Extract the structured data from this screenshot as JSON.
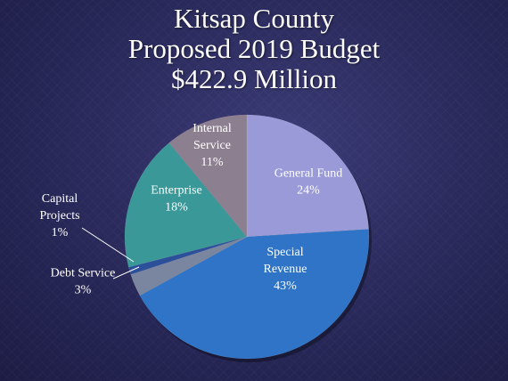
{
  "title": {
    "line1": "Kitsap County",
    "line2": "Proposed 2019 Budget",
    "line3": "$422.9 Million"
  },
  "chart_data": {
    "type": "pie",
    "title": "Kitsap County Proposed 2019 Budget $422.9 Million",
    "slices": [
      {
        "name": "General Fund",
        "label_lines": [
          "General Fund",
          "24%"
        ],
        "value": 24,
        "color": "#9a9ad8",
        "label_color": "#ffffff"
      },
      {
        "name": "Special Revenue",
        "label_lines": [
          "Special",
          "Revenue",
          "43%"
        ],
        "value": 43,
        "color": "#2f74c6",
        "label_color": "#ffffff"
      },
      {
        "name": "Debt Service",
        "label_lines": [
          "Debt Service",
          "3%"
        ],
        "value": 3,
        "color": "#7a86a0",
        "label_color": "#ffffff"
      },
      {
        "name": "Capital Projects",
        "label_lines": [
          "Capital",
          "Projects",
          "1%"
        ],
        "value": 1,
        "color": "#2c4f9a",
        "label_color": "#ffffff"
      },
      {
        "name": "Enterprise",
        "label_lines": [
          "Enterprise",
          "18%"
        ],
        "value": 18,
        "color": "#3b9898",
        "label_color": "#ffffff"
      },
      {
        "name": "Internal Service",
        "label_lines": [
          "Internal",
          "Service",
          "11%"
        ],
        "value": 11,
        "color": "#8c7f90",
        "label_color": "#ffffff"
      }
    ]
  }
}
